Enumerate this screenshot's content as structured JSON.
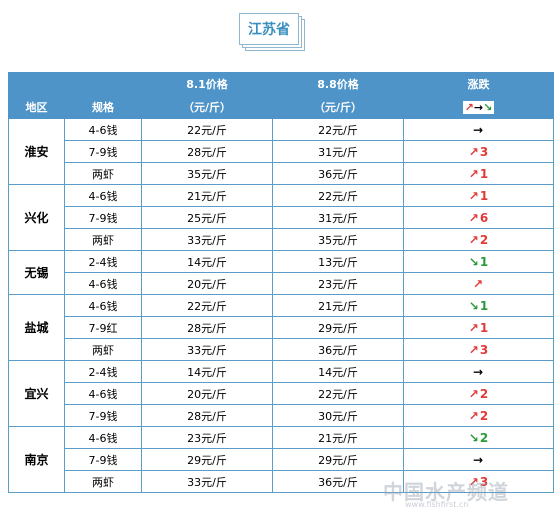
{
  "title": "江苏省",
  "header": {
    "region": "地区",
    "spec": "规格",
    "date1": "8.1价格",
    "date1_unit": "（元/斤）",
    "date2": "8.8价格",
    "date2_unit": "（元/斤）",
    "change": "涨跌",
    "legend": [
      "↗",
      "→",
      "↘"
    ]
  },
  "regions": [
    {
      "name": "淮安",
      "rows": [
        {
          "spec": "4-6钱",
          "p1": "22元/斤",
          "p2": "22元/斤",
          "dir": "flat",
          "arrow": "→",
          "amount": ""
        },
        {
          "spec": "7-9钱",
          "p1": "28元/斤",
          "p2": "31元/斤",
          "dir": "up",
          "arrow": "↗",
          "amount": "3"
        },
        {
          "spec": "两虾",
          "p1": "35元/斤",
          "p2": "36元/斤",
          "dir": "up",
          "arrow": "↗",
          "amount": "1"
        }
      ]
    },
    {
      "name": "兴化",
      "rows": [
        {
          "spec": "4-6钱",
          "p1": "21元/斤",
          "p2": "22元/斤",
          "dir": "up",
          "arrow": "↗",
          "amount": "1"
        },
        {
          "spec": "7-9钱",
          "p1": "25元/斤",
          "p2": "31元/斤",
          "dir": "up",
          "arrow": "↗",
          "amount": "6"
        },
        {
          "spec": "两虾",
          "p1": "33元/斤",
          "p2": "35元/斤",
          "dir": "up",
          "arrow": "↗",
          "amount": "2"
        }
      ]
    },
    {
      "name": "无锡",
      "rows": [
        {
          "spec": "2-4钱",
          "p1": "14元/斤",
          "p2": "13元/斤",
          "dir": "down",
          "arrow": "↘",
          "amount": "1"
        },
        {
          "spec": "4-6钱",
          "p1": "20元/斤",
          "p2": "23元/斤",
          "dir": "up",
          "arrow": "↗",
          "amount": ""
        }
      ]
    },
    {
      "name": "盐城",
      "rows": [
        {
          "spec": "4-6钱",
          "p1": "22元/斤",
          "p2": "21元/斤",
          "dir": "down",
          "arrow": "↘",
          "amount": "1"
        },
        {
          "spec": "7-9红",
          "p1": "28元/斤",
          "p2": "29元/斤",
          "dir": "up",
          "arrow": "↗",
          "amount": "1"
        },
        {
          "spec": "两虾",
          "p1": "33元/斤",
          "p2": "36元/斤",
          "dir": "up",
          "arrow": "↗",
          "amount": "3"
        }
      ]
    },
    {
      "name": "宜兴",
      "rows": [
        {
          "spec": "2-4钱",
          "p1": "14元/斤",
          "p2": "14元/斤",
          "dir": "flat",
          "arrow": "→",
          "amount": ""
        },
        {
          "spec": "4-6钱",
          "p1": "20元/斤",
          "p2": "22元/斤",
          "dir": "up",
          "arrow": "↗",
          "amount": "2"
        },
        {
          "spec": "7-9钱",
          "p1": "28元/斤",
          "p2": "30元/斤",
          "dir": "up",
          "arrow": "↗",
          "amount": "2"
        }
      ]
    },
    {
      "name": "南京",
      "rows": [
        {
          "spec": "4-6钱",
          "p1": "23元/斤",
          "p2": "21元/斤",
          "dir": "down",
          "arrow": "↘",
          "amount": "2"
        },
        {
          "spec": "7-9钱",
          "p1": "29元/斤",
          "p2": "29元/斤",
          "dir": "flat",
          "arrow": "→",
          "amount": ""
        },
        {
          "spec": "两虾",
          "p1": "33元/斤",
          "p2": "36元/斤",
          "dir": "up",
          "arrow": "↗",
          "amount": "3"
        }
      ]
    }
  ],
  "watermark": "中国水产频道",
  "watermark_url": "www.fishfirst.cn",
  "colors": {
    "header_bg": "#4f94c8",
    "up": "#e03a3a",
    "down": "#2a9a3a",
    "border": "#5a9dc6",
    "title": "#3a8fbf"
  }
}
